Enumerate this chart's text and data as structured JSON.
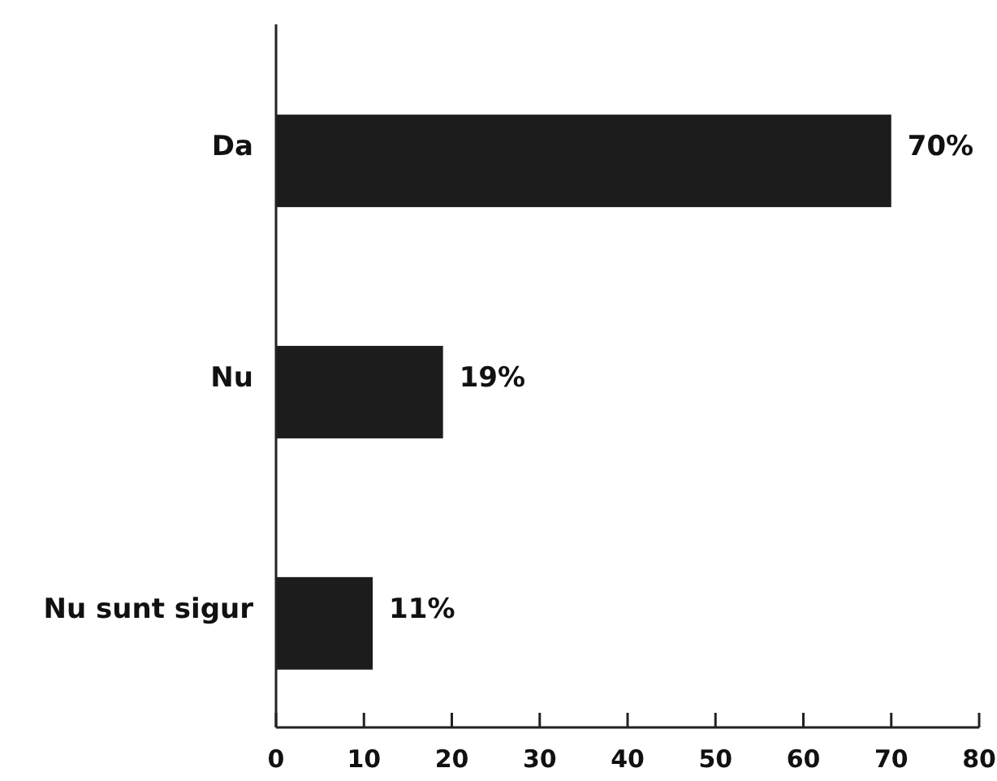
{
  "chart_data": {
    "type": "bar",
    "orientation": "horizontal",
    "categories": [
      "Da",
      "Nu",
      "Nu sunt sigur"
    ],
    "values": [
      70,
      19,
      11
    ],
    "value_labels": [
      "70%",
      "19%",
      "11%"
    ],
    "color": "#1c1c1c",
    "xlim": [
      0,
      80
    ],
    "xticks": [
      0,
      10,
      20,
      30,
      40,
      50,
      60,
      70,
      80
    ],
    "grid": false
  }
}
